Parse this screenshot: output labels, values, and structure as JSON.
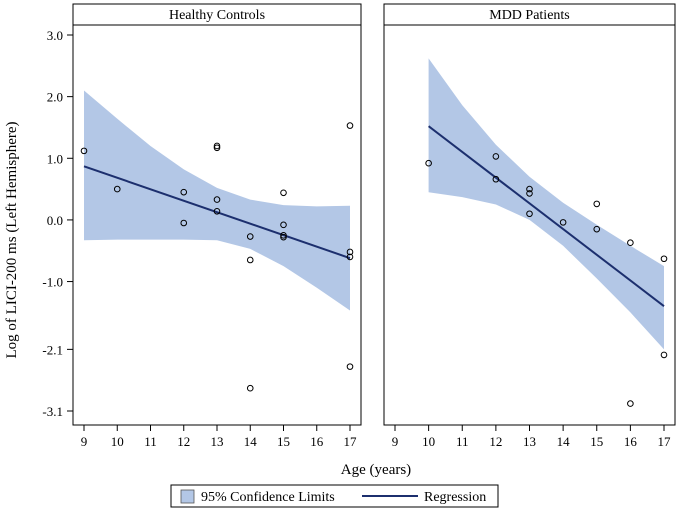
{
  "chart_data": {
    "type": "scatter",
    "ylabel": "Log of LICI-200 ms (Left Hemisphere)",
    "xlabel": "Age (years)",
    "xlim": [
      9,
      17
    ],
    "ylim": [
      -3.1,
      3.0
    ],
    "x_ticks": [
      "9",
      "10",
      "11",
      "12",
      "13",
      "14",
      "15",
      "16",
      "17"
    ],
    "y_ticks": [
      {
        "value": 3.0,
        "label": "3.0"
      },
      {
        "value": 2.0,
        "label": "2.0"
      },
      {
        "value": 1.0,
        "label": "1.0"
      },
      {
        "value": 0.0,
        "label": "0.0"
      },
      {
        "value": -1.0,
        "label": "-1.0"
      },
      {
        "value": -2.1,
        "label": "-2.1"
      },
      {
        "value": -3.1,
        "label": "-3.1"
      }
    ],
    "legend": {
      "placement": "bottom",
      "ci_label": "95% Confidence Limits",
      "regression_label": "Regression"
    },
    "colors": {
      "band": "#b3c7e6",
      "line": "#1c2f6e"
    },
    "panels": [
      {
        "title": "Healthy Controls",
        "points": [
          [
            9,
            1.12
          ],
          [
            10,
            0.5
          ],
          [
            12,
            0.45
          ],
          [
            12,
            -0.05
          ],
          [
            13,
            1.2
          ],
          [
            13,
            1.17
          ],
          [
            13,
            0.33
          ],
          [
            13,
            0.14
          ],
          [
            14,
            -0.27
          ],
          [
            14,
            -0.65
          ],
          [
            14,
            -2.73
          ],
          [
            15,
            0.44
          ],
          [
            15,
            -0.08
          ],
          [
            15,
            -0.25
          ],
          [
            15,
            -0.28
          ],
          [
            17,
            1.53
          ],
          [
            17,
            -0.52
          ],
          [
            17,
            -0.6
          ],
          [
            17,
            -2.38
          ]
        ],
        "regression": {
          "x": [
            9,
            17
          ],
          "y": [
            0.87,
            -0.62
          ]
        },
        "ci_upper": [
          [
            9,
            2.1
          ],
          [
            10,
            1.64
          ],
          [
            11,
            1.2
          ],
          [
            12,
            0.82
          ],
          [
            13,
            0.52
          ],
          [
            14,
            0.33
          ],
          [
            15,
            0.24
          ],
          [
            16,
            0.22
          ],
          [
            17,
            0.23
          ]
        ],
        "ci_lower": [
          [
            9,
            -0.33
          ],
          [
            10,
            -0.32
          ],
          [
            11,
            -0.32
          ],
          [
            12,
            -0.32
          ],
          [
            13,
            -0.33
          ],
          [
            14,
            -0.47
          ],
          [
            15,
            -0.75
          ],
          [
            16,
            -1.1
          ],
          [
            17,
            -1.47
          ]
        ]
      },
      {
        "title": "MDD Patients",
        "points": [
          [
            10,
            0.92
          ],
          [
            12,
            1.03
          ],
          [
            12,
            0.66
          ],
          [
            13,
            0.5
          ],
          [
            13,
            0.43
          ],
          [
            13,
            0.1
          ],
          [
            14,
            -0.04
          ],
          [
            15,
            0.26
          ],
          [
            15,
            -0.15
          ],
          [
            16,
            -0.37
          ],
          [
            16,
            -2.98
          ],
          [
            17,
            -0.63
          ],
          [
            17,
            -2.19
          ]
        ],
        "regression": {
          "x": [
            10,
            17
          ],
          "y": [
            1.52,
            -1.4
          ]
        },
        "ci_upper": [
          [
            10,
            2.62
          ],
          [
            11,
            1.86
          ],
          [
            12,
            1.22
          ],
          [
            13,
            0.7
          ],
          [
            14,
            0.28
          ],
          [
            15,
            -0.08
          ],
          [
            16,
            -0.42
          ],
          [
            17,
            -0.75
          ]
        ],
        "ci_lower": [
          [
            10,
            0.45
          ],
          [
            11,
            0.37
          ],
          [
            12,
            0.25
          ],
          [
            13,
            0.0
          ],
          [
            14,
            -0.42
          ],
          [
            15,
            -0.95
          ],
          [
            16,
            -1.5
          ],
          [
            17,
            -2.1
          ]
        ]
      }
    ]
  }
}
